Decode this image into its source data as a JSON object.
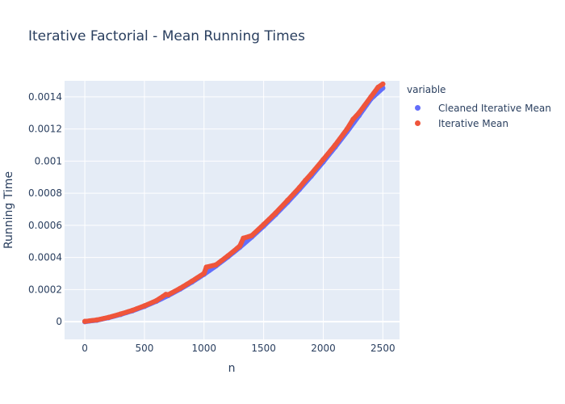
{
  "chart_data": {
    "type": "scatter",
    "title": "Iterative Factorial - Mean Running Times",
    "xlabel": "n",
    "ylabel": "Running Time",
    "xlim": [
      -170,
      2640
    ],
    "ylim": [
      -0.00011,
      0.0015
    ],
    "xticks": [
      0,
      500,
      1000,
      1500,
      2000,
      2500
    ],
    "xtick_labels": [
      "0",
      "500",
      "1000",
      "1500",
      "2000",
      "2500"
    ],
    "yticks": [
      0,
      0.0002,
      0.0004,
      0.0006,
      0.0008,
      0.001,
      0.0012,
      0.0014
    ],
    "ytick_labels": [
      "0",
      "0.0002",
      "0.0004",
      "0.0006",
      "0.0008",
      "0.001",
      "0.0012",
      "0.0014"
    ],
    "grid": true,
    "legend_title": "variable",
    "legend_position": "right",
    "series": [
      {
        "name": "Cleaned Iterative Mean",
        "color": "#636efa",
        "x": [
          0,
          100,
          200,
          300,
          400,
          500,
          600,
          700,
          800,
          900,
          1000,
          1100,
          1200,
          1300,
          1400,
          1500,
          1600,
          1700,
          1800,
          1900,
          2000,
          2100,
          2200,
          2300,
          2400,
          2500
        ],
        "y": [
          0.0,
          9e-06,
          2.5e-05,
          4.5e-05,
          6.8e-05,
          9.5e-05,
          0.000127,
          0.000163,
          0.000203,
          0.000247,
          0.000295,
          0.000347,
          0.000403,
          0.000463,
          0.000527,
          0.000595,
          0.000667,
          0.000743,
          0.000823,
          0.000907,
          0.000995,
          0.001087,
          0.001183,
          0.001283,
          0.001387,
          0.001455
        ]
      },
      {
        "name": "Iterative Mean",
        "color": "#ef553b",
        "x": [
          0,
          100,
          200,
          300,
          400,
          500,
          600,
          680,
          700,
          800,
          900,
          1000,
          1020,
          1100,
          1200,
          1300,
          1330,
          1400,
          1500,
          1600,
          1700,
          1800,
          1850,
          1900,
          2000,
          2100,
          2200,
          2250,
          2300,
          2400,
          2460,
          2500
        ],
        "y": [
          2e-06,
          1.1e-05,
          2.7e-05,
          4.8e-05,
          7.1e-05,
          9.9e-05,
          0.000131,
          0.00017,
          0.000168,
          0.000208,
          0.000253,
          0.000301,
          0.00034,
          0.000354,
          0.00041,
          0.000471,
          0.00052,
          0.000536,
          0.000605,
          0.000677,
          0.000755,
          0.000835,
          0.00088,
          0.000921,
          0.00101,
          0.0011,
          0.0012,
          0.00126,
          0.0013,
          0.0014,
          0.00146,
          0.00148
        ]
      }
    ]
  }
}
